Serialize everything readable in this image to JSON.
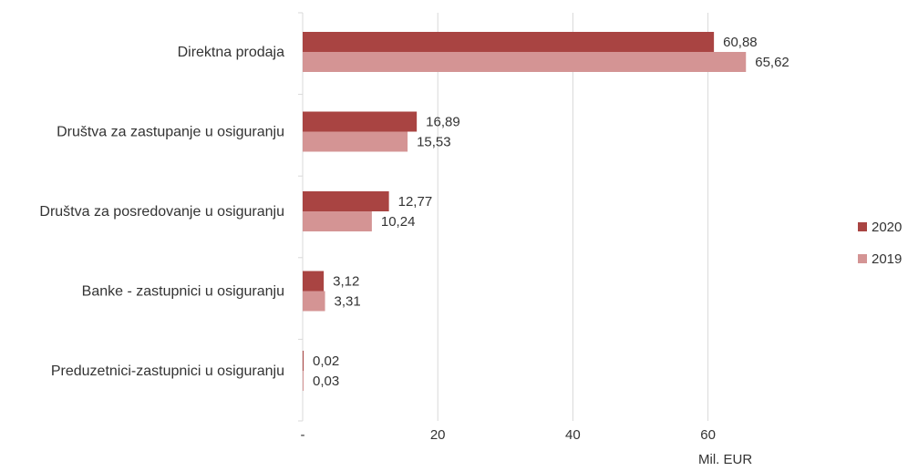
{
  "chart_data": {
    "type": "bar",
    "orientation": "horizontal",
    "categories": [
      "Direktna prodaja",
      "Društva za zastupanje u osiguranju",
      "Društva za posredovanje u osiguranju",
      "Banke - zastupnici u osiguranju",
      "Preduzetnici-zastupnici u osiguranju"
    ],
    "series": [
      {
        "name": "2020",
        "color": "#a94442",
        "values": [
          60.88,
          16.89,
          12.77,
          3.12,
          0.02
        ],
        "labels": [
          "60,88",
          "16,89",
          "12,77",
          "3,12",
          "0,02"
        ]
      },
      {
        "name": "2019",
        "color": "#d49494",
        "values": [
          65.62,
          15.53,
          10.24,
          3.31,
          0.03
        ],
        "labels": [
          "65,62",
          "15,53",
          "10,24",
          "3,31",
          "0,03"
        ]
      }
    ],
    "xlim": [
      0,
      80
    ],
    "xticks": [
      0,
      20,
      40,
      60
    ],
    "xtick_labels": [
      "-",
      "20",
      "40",
      "60"
    ],
    "xlabel": "Mil. EUR",
    "grid": true,
    "legend_position": "right"
  }
}
